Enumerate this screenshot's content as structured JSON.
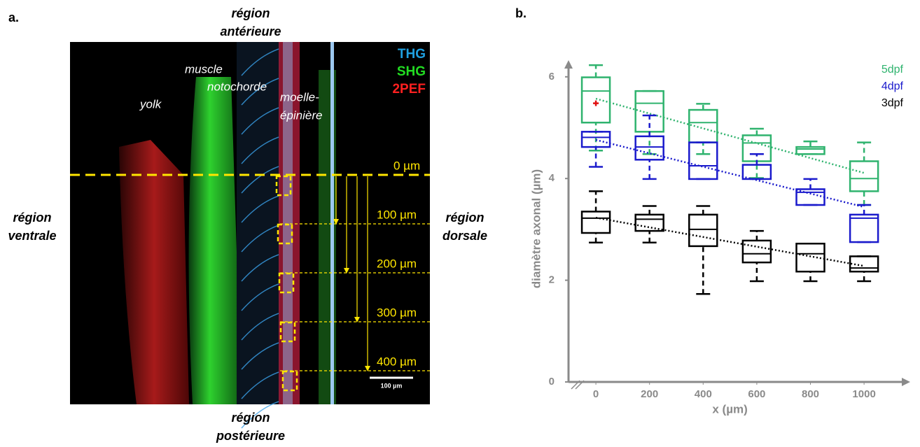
{
  "panel_a": {
    "label": "a.",
    "anterior": [
      "région",
      "antérieure"
    ],
    "posterior": [
      "région",
      "postérieure"
    ],
    "ventral": [
      "région",
      "ventrale"
    ],
    "dorsal": [
      "région",
      "dorsale"
    ],
    "channels": [
      "THG",
      "SHG",
      "2PEF"
    ],
    "tissues": [
      "yolk",
      "muscle",
      "notochorde",
      "moelle-",
      "épinière"
    ],
    "depths": [
      "0 µm",
      "100 µm",
      "200 µm",
      "300 µm",
      "400 µm"
    ],
    "scale_bar": "100 µm"
  },
  "chart_data": {
    "type": "box",
    "panel_label": "b.",
    "xlabel": "x (µm)",
    "ylabel": "diamètre axonal (µm)",
    "x": [
      0,
      200,
      400,
      600,
      800,
      1000
    ],
    "xlim": [
      -102,
      1172
    ],
    "xticks": [
      0,
      200,
      400,
      600,
      800,
      1000
    ],
    "ylim": [
      0,
      6.3
    ],
    "yticks": [
      0,
      2,
      4,
      6
    ],
    "legend": "upper right",
    "series": [
      {
        "name": "5dpf",
        "color": "#2fb36e",
        "low": [
          4.55,
          4.48,
          4.48,
          4.01,
          4.48,
          3.48
        ],
        "q1": [
          5.1,
          4.92,
          4.71,
          4.34,
          4.48,
          3.75
        ],
        "median": [
          5.72,
          5.48,
          5.1,
          4.7,
          4.58,
          4.0
        ],
        "q3": [
          5.99,
          5.72,
          5.35,
          4.85,
          4.62,
          4.34
        ],
        "high": [
          6.23,
          5.72,
          5.47,
          4.98,
          4.73,
          4.71
        ],
        "means": [
          5.48,
          null,
          null,
          null,
          null,
          null
        ],
        "trend": [
          5.57,
          4.11
        ]
      },
      {
        "name": "4dpf",
        "color": "#1a1acc",
        "low": [
          4.23,
          3.99,
          3.99,
          3.99,
          3.48,
          2.75
        ],
        "q1": [
          4.62,
          4.37,
          3.99,
          3.99,
          3.48,
          2.75
        ],
        "median": [
          4.81,
          4.62,
          4.25,
          4.27,
          3.73,
          3.22
        ],
        "q3": [
          4.92,
          4.83,
          4.71,
          4.27,
          3.79,
          3.29
        ],
        "high": [
          4.92,
          5.24,
          4.71,
          4.48,
          3.99,
          3.48
        ],
        "trend": [
          4.76,
          3.44
        ]
      },
      {
        "name": "3dpf",
        "color": "#000000",
        "low": [
          2.74,
          2.74,
          1.73,
          1.98,
          1.98,
          1.98
        ],
        "q1": [
          2.93,
          2.97,
          2.67,
          2.35,
          2.17,
          2.17
        ],
        "median": [
          3.22,
          3.2,
          3.0,
          2.52,
          2.52,
          2.24
        ],
        "q3": [
          3.35,
          3.29,
          3.29,
          2.78,
          2.72,
          2.47
        ],
        "high": [
          3.75,
          3.46,
          3.46,
          2.97,
          2.72,
          2.47
        ],
        "trend": [
          3.23,
          2.28
        ]
      }
    ]
  }
}
